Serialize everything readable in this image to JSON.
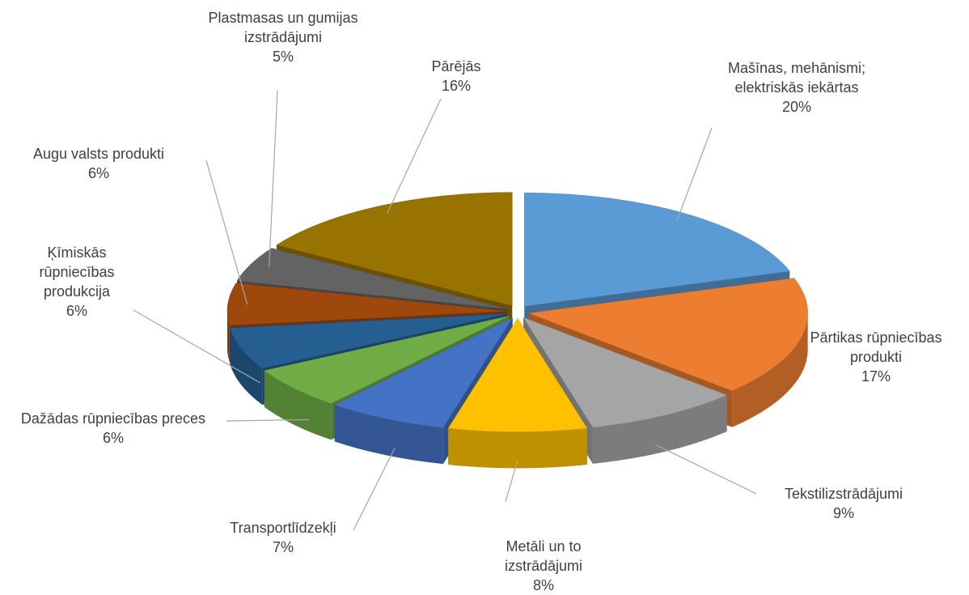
{
  "chart_data": {
    "type": "pie",
    "view": "3d-exploded",
    "categories": [
      "Mašīnas, mehānismi; elektriskās iekārtas",
      "Pārtikas rūpniecības produkti",
      "Tekstilizstrādājumi",
      "Metāli un to izstrādājumi",
      "Transportlīdzekļi",
      "Dažādas rūpniecības preces",
      "Ķīmiskās rūpniecības produkcija",
      "Augu valsts produkti",
      "Plastmasas un gumijas izstrādājumi",
      "Pārējās"
    ],
    "values": [
      20,
      17,
      9,
      8,
      7,
      6,
      6,
      6,
      5,
      16
    ],
    "value_labels": [
      "20%",
      "17%",
      "9%",
      "8%",
      "7%",
      "6%",
      "6%",
      "6%",
      "5%",
      "16%"
    ],
    "colors": [
      "#5b9bd5",
      "#ed7d31",
      "#a5a5a5",
      "#ffc000",
      "#4472c4",
      "#70ad47",
      "#255e91",
      "#9e480e",
      "#636363",
      "#997300"
    ]
  }
}
